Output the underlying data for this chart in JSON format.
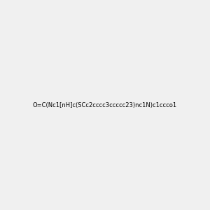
{
  "smiles": "O=C(Nc1[nH]c(SCc2cccc3ccccc23)nc1N)c1ccco1",
  "image_size": 300,
  "background_color": "#f0f0f0"
}
